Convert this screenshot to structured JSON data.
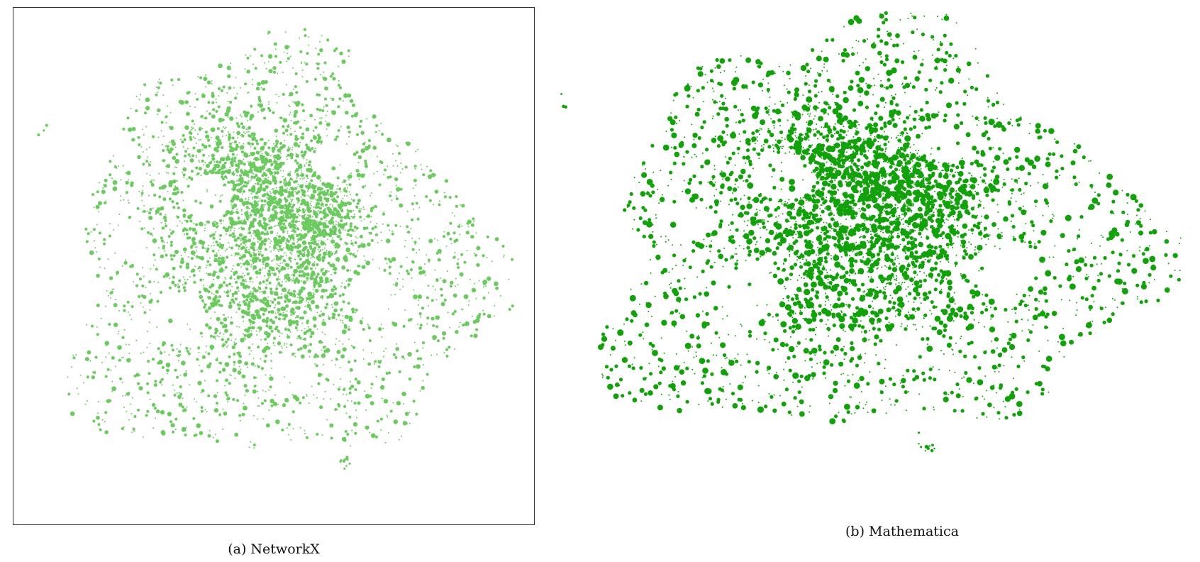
{
  "figure": {
    "panel_a": {
      "caption": "(a) NetworkX",
      "framed": true,
      "node_color": "#6cca60",
      "node_count_shown": "approx. 5000",
      "description_shape": "dense node cloud shaped like the map of a city, axes hidden"
    },
    "panel_b": {
      "caption": "(b) Mathematica",
      "framed": false,
      "node_color": "#12a10a",
      "node_count_shown": "approx. 5000"
    }
  }
}
